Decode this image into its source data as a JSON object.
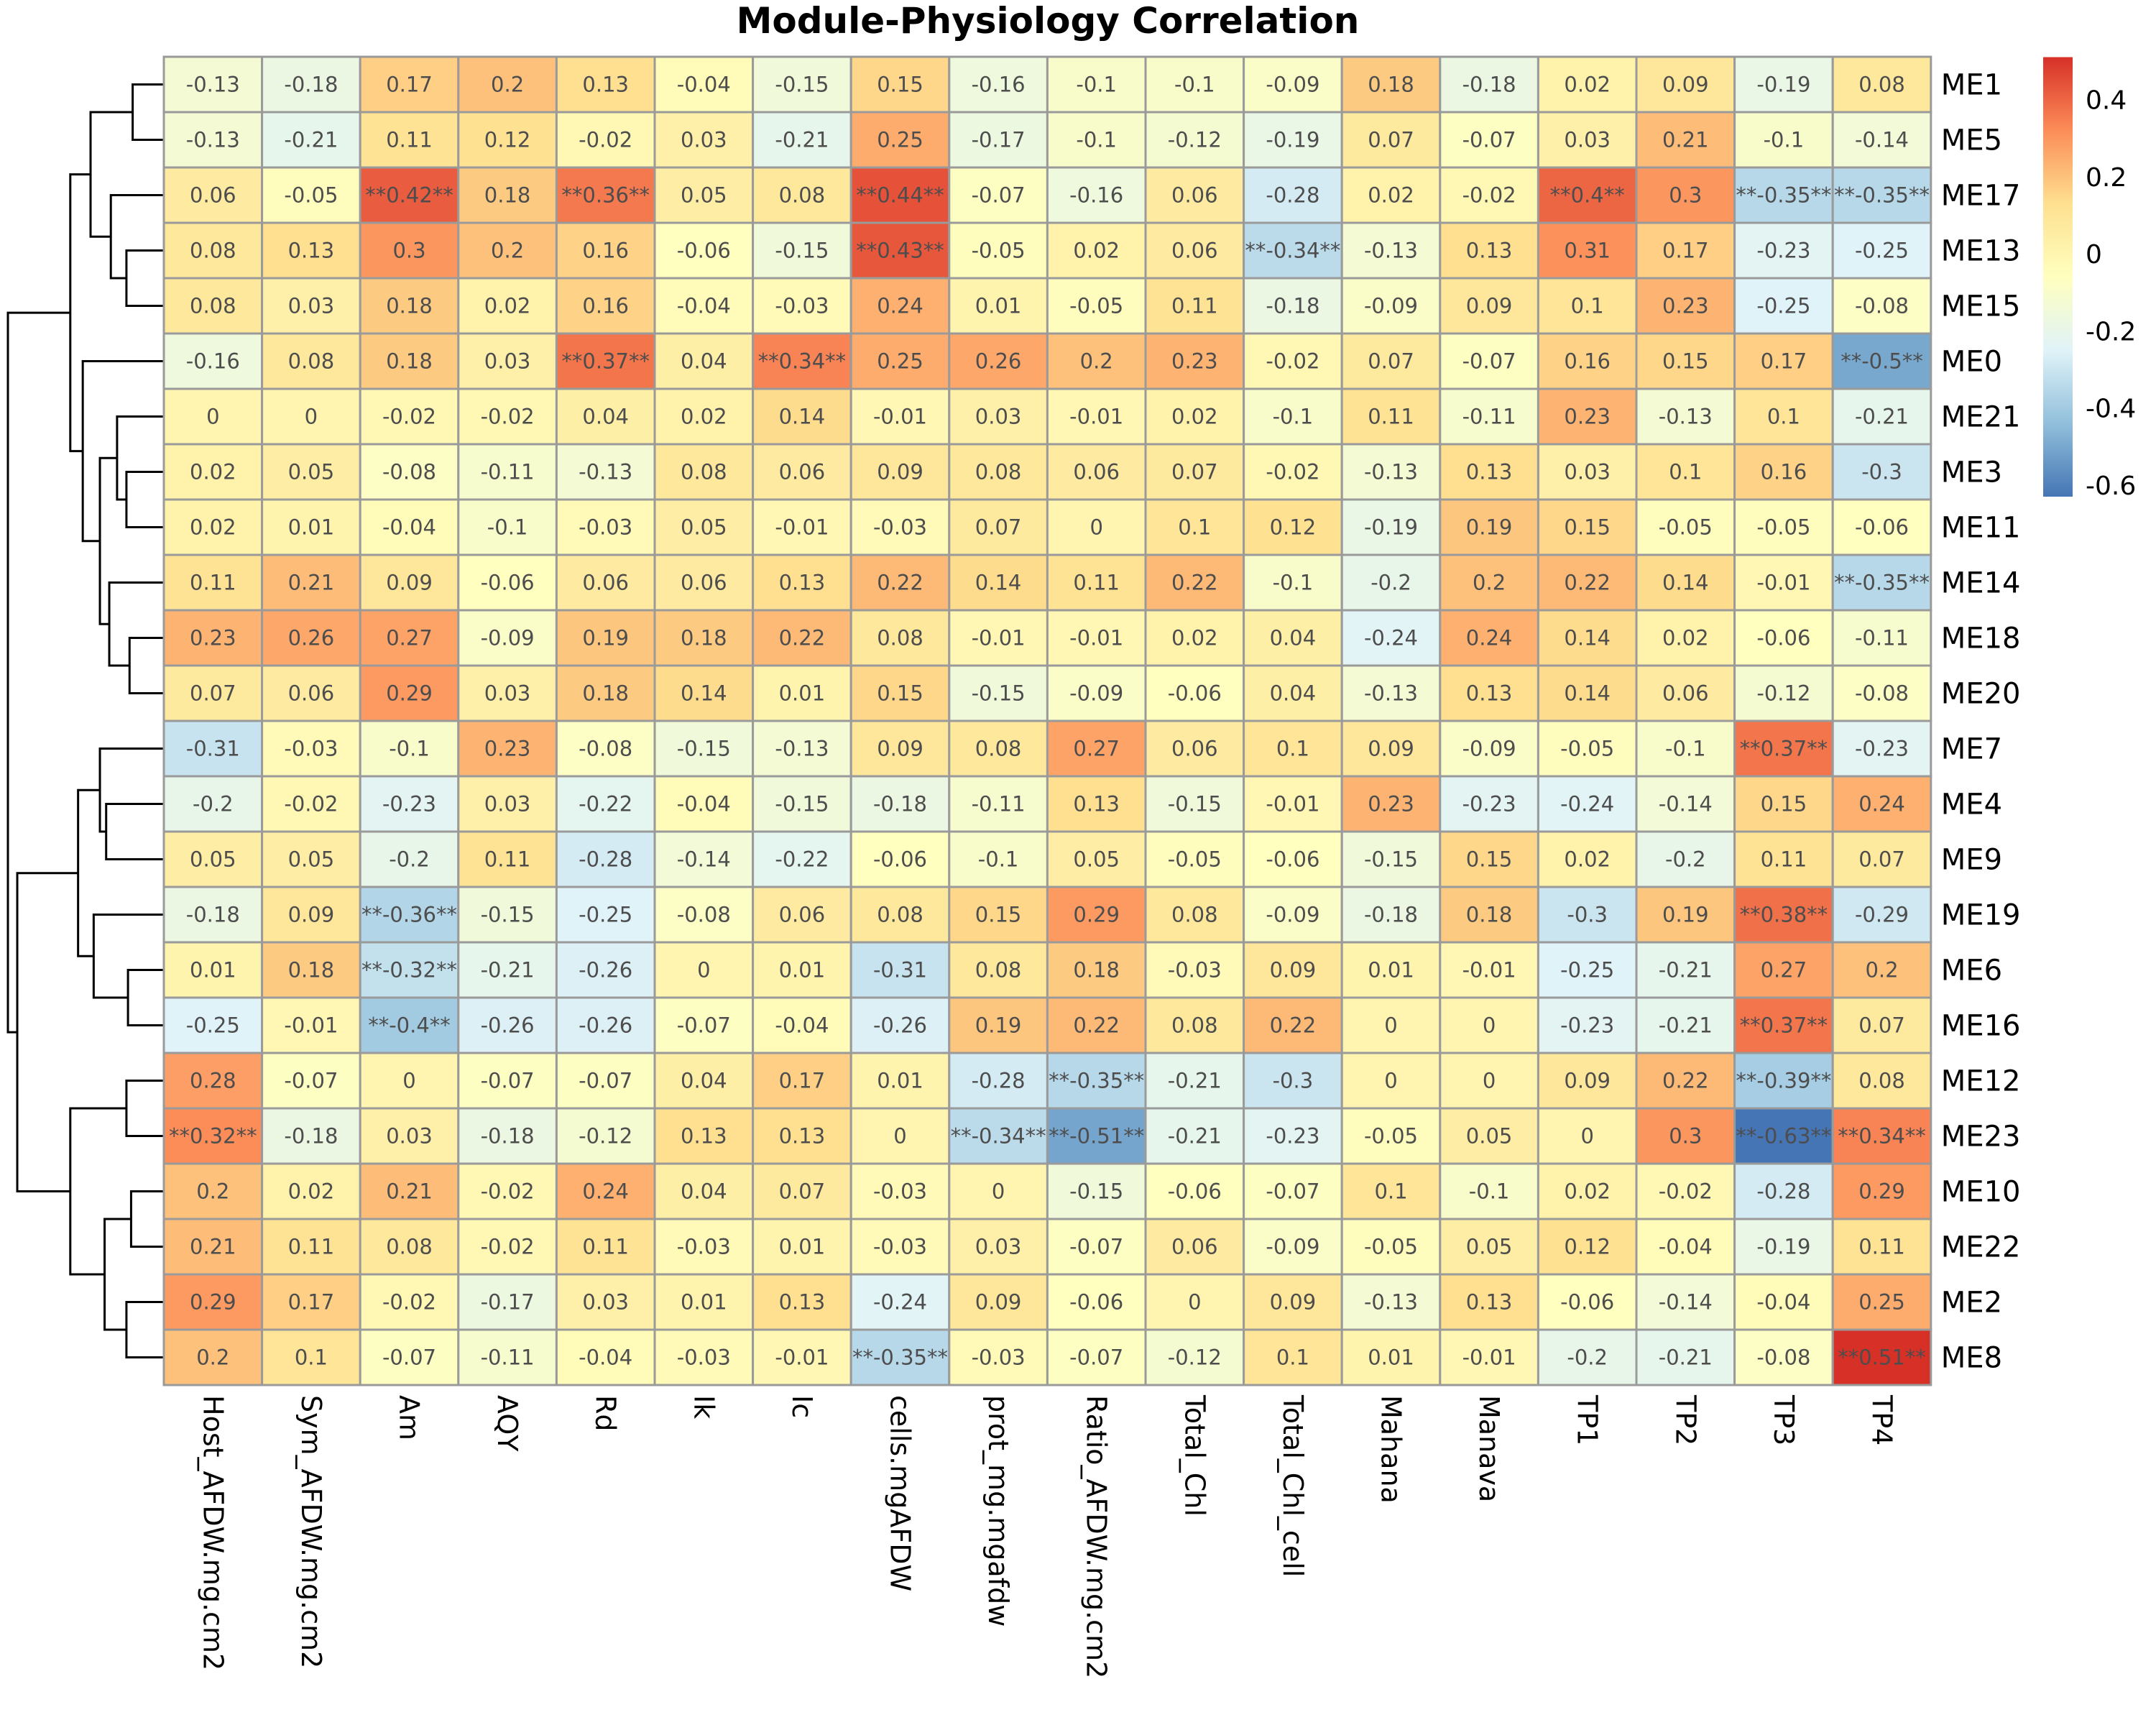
{
  "chart_data": {
    "type": "heatmap",
    "title": "Module-Physiology Correlation",
    "xlabel": "",
    "ylabel": "",
    "columns": [
      "Host_AFDW.mg.cm2",
      "Sym_AFDW.mg.cm2",
      "Am",
      "AQY",
      "Rd",
      "Ik",
      "Ic",
      "cells.mgAFDW",
      "prot_mg.mgafdw",
      "Ratio_AFDW.mg.cm2",
      "Total_Chl",
      "Total_Chl_cell",
      "Mahana",
      "Manava",
      "TP1",
      "TP2",
      "TP3",
      "TP4"
    ],
    "rows": [
      "ME1",
      "ME5",
      "ME17",
      "ME13",
      "ME15",
      "ME0",
      "ME21",
      "ME3",
      "ME11",
      "ME14",
      "ME18",
      "ME20",
      "ME7",
      "ME4",
      "ME9",
      "ME19",
      "ME6",
      "ME16",
      "ME12",
      "ME23",
      "ME10",
      "ME22",
      "ME2",
      "ME8"
    ],
    "values": [
      [
        -0.13,
        -0.18,
        0.17,
        0.2,
        0.13,
        -0.04,
        -0.15,
        0.15,
        -0.16,
        -0.1,
        -0.1,
        -0.09,
        0.18,
        -0.18,
        0.02,
        0.09,
        -0.19,
        0.08
      ],
      [
        -0.13,
        -0.21,
        0.11,
        0.12,
        -0.02,
        0.03,
        -0.21,
        0.25,
        -0.17,
        -0.1,
        -0.12,
        -0.19,
        0.07,
        -0.07,
        0.03,
        0.21,
        -0.1,
        -0.14
      ],
      [
        0.06,
        -0.05,
        0.42,
        0.18,
        0.36,
        0.05,
        0.08,
        0.44,
        -0.07,
        -0.16,
        0.06,
        -0.28,
        0.02,
        -0.02,
        0.4,
        0.3,
        -0.35,
        -0.35
      ],
      [
        0.08,
        0.13,
        0.3,
        0.2,
        0.16,
        -0.06,
        -0.15,
        0.43,
        -0.05,
        0.02,
        0.06,
        -0.34,
        -0.13,
        0.13,
        0.31,
        0.17,
        -0.23,
        -0.25
      ],
      [
        0.08,
        0.03,
        0.18,
        0.02,
        0.16,
        -0.04,
        -0.03,
        0.24,
        0.01,
        -0.05,
        0.11,
        -0.18,
        -0.09,
        0.09,
        0.1,
        0.23,
        -0.25,
        -0.08
      ],
      [
        -0.16,
        0.08,
        0.18,
        0.03,
        0.37,
        0.04,
        0.34,
        0.25,
        0.26,
        0.2,
        0.23,
        -0.02,
        0.07,
        -0.07,
        0.16,
        0.15,
        0.17,
        -0.5
      ],
      [
        0,
        0,
        -0.02,
        -0.02,
        0.04,
        0.02,
        0.14,
        -0.01,
        0.03,
        -0.01,
        0.02,
        -0.1,
        0.11,
        -0.11,
        0.23,
        -0.13,
        0.1,
        -0.21
      ],
      [
        0.02,
        0.05,
        -0.08,
        -0.11,
        -0.13,
        0.08,
        0.06,
        0.09,
        0.08,
        0.06,
        0.07,
        -0.02,
        -0.13,
        0.13,
        0.03,
        0.1,
        0.16,
        -0.3
      ],
      [
        0.02,
        0.01,
        -0.04,
        -0.1,
        -0.03,
        0.05,
        -0.01,
        -0.03,
        0.07,
        0,
        0.1,
        0.12,
        -0.19,
        0.19,
        0.15,
        -0.05,
        -0.05,
        -0.06
      ],
      [
        0.11,
        0.21,
        0.09,
        -0.06,
        0.06,
        0.06,
        0.13,
        0.22,
        0.14,
        0.11,
        0.22,
        -0.1,
        -0.2,
        0.2,
        0.22,
        0.14,
        -0.01,
        -0.35
      ],
      [
        0.23,
        0.26,
        0.27,
        -0.09,
        0.19,
        0.18,
        0.22,
        0.08,
        -0.01,
        -0.01,
        0.02,
        0.04,
        -0.24,
        0.24,
        0.14,
        0.02,
        -0.06,
        -0.11
      ],
      [
        0.07,
        0.06,
        0.29,
        0.03,
        0.18,
        0.14,
        0.01,
        0.15,
        -0.15,
        -0.09,
        -0.06,
        0.04,
        -0.13,
        0.13,
        0.14,
        0.06,
        -0.12,
        -0.08
      ],
      [
        -0.31,
        -0.03,
        -0.1,
        0.23,
        -0.08,
        -0.15,
        -0.13,
        0.09,
        0.08,
        0.27,
        0.06,
        0.1,
        0.09,
        -0.09,
        -0.05,
        -0.1,
        0.37,
        -0.23
      ],
      [
        -0.2,
        -0.02,
        -0.23,
        0.03,
        -0.22,
        -0.04,
        -0.15,
        -0.18,
        -0.11,
        0.13,
        -0.15,
        -0.01,
        0.23,
        -0.23,
        -0.24,
        -0.14,
        0.15,
        0.24
      ],
      [
        0.05,
        0.05,
        -0.2,
        0.11,
        -0.28,
        -0.14,
        -0.22,
        -0.06,
        -0.1,
        0.05,
        -0.05,
        -0.06,
        -0.15,
        0.15,
        0.02,
        -0.2,
        0.11,
        0.07
      ],
      [
        -0.18,
        0.09,
        -0.36,
        -0.15,
        -0.25,
        -0.08,
        0.06,
        0.08,
        0.15,
        0.29,
        0.08,
        -0.09,
        -0.18,
        0.18,
        -0.3,
        0.19,
        0.38,
        -0.29
      ],
      [
        0.01,
        0.18,
        -0.32,
        -0.21,
        -0.26,
        0,
        0.01,
        -0.31,
        0.08,
        0.18,
        -0.03,
        0.09,
        0.01,
        -0.01,
        -0.25,
        -0.21,
        0.27,
        0.2
      ],
      [
        -0.25,
        -0.01,
        -0.4,
        -0.26,
        -0.26,
        -0.07,
        -0.04,
        -0.26,
        0.19,
        0.22,
        0.08,
        0.22,
        0,
        0,
        -0.23,
        -0.21,
        0.37,
        0.07
      ],
      [
        0.28,
        -0.07,
        0,
        -0.07,
        -0.07,
        0.04,
        0.17,
        0.01,
        -0.28,
        -0.35,
        -0.21,
        -0.3,
        0,
        0,
        0.09,
        0.22,
        -0.39,
        0.08
      ],
      [
        0.32,
        -0.18,
        0.03,
        -0.18,
        -0.12,
        0.13,
        0.13,
        0,
        -0.34,
        -0.51,
        -0.21,
        -0.23,
        -0.05,
        0.05,
        0,
        0.3,
        -0.63,
        0.34
      ],
      [
        0.2,
        0.02,
        0.21,
        -0.02,
        0.24,
        0.04,
        0.07,
        -0.03,
        0,
        -0.15,
        -0.06,
        -0.07,
        0.1,
        -0.1,
        0.02,
        -0.02,
        -0.28,
        0.29
      ],
      [
        0.21,
        0.11,
        0.08,
        -0.02,
        0.11,
        -0.03,
        0.01,
        -0.03,
        0.03,
        -0.07,
        0.06,
        -0.09,
        -0.05,
        0.05,
        0.12,
        -0.04,
        -0.19,
        0.11
      ],
      [
        0.29,
        0.17,
        -0.02,
        -0.17,
        0.03,
        0.01,
        0.13,
        -0.24,
        0.09,
        -0.06,
        0,
        0.09,
        -0.13,
        0.13,
        -0.06,
        -0.14,
        -0.04,
        0.25
      ],
      [
        0.2,
        0.1,
        -0.07,
        -0.11,
        -0.04,
        -0.03,
        -0.01,
        -0.35,
        -0.03,
        -0.07,
        -0.12,
        0.1,
        0.01,
        -0.01,
        -0.2,
        -0.21,
        -0.08,
        0.51
      ]
    ],
    "cell_labels": [
      [
        "-0.13",
        "-0.18",
        "0.17",
        "0.2",
        "0.13",
        "-0.04",
        "-0.15",
        "0.15",
        "-0.16",
        "-0.1",
        "-0.1",
        "-0.09",
        "0.18",
        "-0.18",
        "0.02",
        "0.09",
        "-0.19",
        "0.08"
      ],
      [
        "-0.13",
        "-0.21",
        "0.11",
        "0.12",
        "-0.02",
        "0.03",
        "-0.21",
        "0.25",
        "-0.17",
        "-0.1",
        "-0.12",
        "-0.19",
        "0.07",
        "-0.07",
        "0.03",
        "0.21",
        "-0.1",
        "-0.14"
      ],
      [
        "0.06",
        "-0.05",
        "**0.42**",
        "0.18",
        "**0.36**",
        "0.05",
        "0.08",
        "**0.44**",
        "-0.07",
        "-0.16",
        "0.06",
        "-0.28",
        "0.02",
        "-0.02",
        "**0.4**",
        "0.3",
        "**-0.35**",
        "**-0.35**"
      ],
      [
        "0.08",
        "0.13",
        "0.3",
        "0.2",
        "0.16",
        "-0.06",
        "-0.15",
        "**0.43**",
        "-0.05",
        "0.02",
        "0.06",
        "**-0.34**",
        "-0.13",
        "0.13",
        "0.31",
        "0.17",
        "-0.23",
        "-0.25"
      ],
      [
        "0.08",
        "0.03",
        "0.18",
        "0.02",
        "0.16",
        "-0.04",
        "-0.03",
        "0.24",
        "0.01",
        "-0.05",
        "0.11",
        "-0.18",
        "-0.09",
        "0.09",
        "0.1",
        "0.23",
        "-0.25",
        "-0.08"
      ],
      [
        "-0.16",
        "0.08",
        "0.18",
        "0.03",
        "**0.37**",
        "0.04",
        "**0.34**",
        "0.25",
        "0.26",
        "0.2",
        "0.23",
        "-0.02",
        "0.07",
        "-0.07",
        "0.16",
        "0.15",
        "0.17",
        "**-0.5**"
      ],
      [
        "0",
        "0",
        "-0.02",
        "-0.02",
        "0.04",
        "0.02",
        "0.14",
        "-0.01",
        "0.03",
        "-0.01",
        "0.02",
        "-0.1",
        "0.11",
        "-0.11",
        "0.23",
        "-0.13",
        "0.1",
        "-0.21"
      ],
      [
        "0.02",
        "0.05",
        "-0.08",
        "-0.11",
        "-0.13",
        "0.08",
        "0.06",
        "0.09",
        "0.08",
        "0.06",
        "0.07",
        "-0.02",
        "-0.13",
        "0.13",
        "0.03",
        "0.1",
        "0.16",
        "-0.3"
      ],
      [
        "0.02",
        "0.01",
        "-0.04",
        "-0.1",
        "-0.03",
        "0.05",
        "-0.01",
        "-0.03",
        "0.07",
        "0",
        "0.1",
        "0.12",
        "-0.19",
        "0.19",
        "0.15",
        "-0.05",
        "-0.05",
        "-0.06"
      ],
      [
        "0.11",
        "0.21",
        "0.09",
        "-0.06",
        "0.06",
        "0.06",
        "0.13",
        "0.22",
        "0.14",
        "0.11",
        "0.22",
        "-0.1",
        "-0.2",
        "0.2",
        "0.22",
        "0.14",
        "-0.01",
        "**-0.35**"
      ],
      [
        "0.23",
        "0.26",
        "0.27",
        "-0.09",
        "0.19",
        "0.18",
        "0.22",
        "0.08",
        "-0.01",
        "-0.01",
        "0.02",
        "0.04",
        "-0.24",
        "0.24",
        "0.14",
        "0.02",
        "-0.06",
        "-0.11"
      ],
      [
        "0.07",
        "0.06",
        "0.29",
        "0.03",
        "0.18",
        "0.14",
        "0.01",
        "0.15",
        "-0.15",
        "-0.09",
        "-0.06",
        "0.04",
        "-0.13",
        "0.13",
        "0.14",
        "0.06",
        "-0.12",
        "-0.08"
      ],
      [
        "-0.31",
        "-0.03",
        "-0.1",
        "0.23",
        "-0.08",
        "-0.15",
        "-0.13",
        "0.09",
        "0.08",
        "0.27",
        "0.06",
        "0.1",
        "0.09",
        "-0.09",
        "-0.05",
        "-0.1",
        "**0.37**",
        "-0.23"
      ],
      [
        "-0.2",
        "-0.02",
        "-0.23",
        "0.03",
        "-0.22",
        "-0.04",
        "-0.15",
        "-0.18",
        "-0.11",
        "0.13",
        "-0.15",
        "-0.01",
        "0.23",
        "-0.23",
        "-0.24",
        "-0.14",
        "0.15",
        "0.24"
      ],
      [
        "0.05",
        "0.05",
        "-0.2",
        "0.11",
        "-0.28",
        "-0.14",
        "-0.22",
        "-0.06",
        "-0.1",
        "0.05",
        "-0.05",
        "-0.06",
        "-0.15",
        "0.15",
        "0.02",
        "-0.2",
        "0.11",
        "0.07"
      ],
      [
        "-0.18",
        "0.09",
        "**-0.36**",
        "-0.15",
        "-0.25",
        "-0.08",
        "0.06",
        "0.08",
        "0.15",
        "0.29",
        "0.08",
        "-0.09",
        "-0.18",
        "0.18",
        "-0.3",
        "0.19",
        "**0.38**",
        "-0.29"
      ],
      [
        "0.01",
        "0.18",
        "**-0.32**",
        "-0.21",
        "-0.26",
        "0",
        "0.01",
        "-0.31",
        "0.08",
        "0.18",
        "-0.03",
        "0.09",
        "0.01",
        "-0.01",
        "-0.25",
        "-0.21",
        "0.27",
        "0.2"
      ],
      [
        "-0.25",
        "-0.01",
        "**-0.4**",
        "-0.26",
        "-0.26",
        "-0.07",
        "-0.04",
        "-0.26",
        "0.19",
        "0.22",
        "0.08",
        "0.22",
        "0",
        "0",
        "-0.23",
        "-0.21",
        "**0.37**",
        "0.07"
      ],
      [
        "0.28",
        "-0.07",
        "0",
        "-0.07",
        "-0.07",
        "0.04",
        "0.17",
        "0.01",
        "-0.28",
        "**-0.35**",
        "-0.21",
        "-0.3",
        "0",
        "0",
        "0.09",
        "0.22",
        "**-0.39**",
        "0.08"
      ],
      [
        "**0.32**",
        "-0.18",
        "0.03",
        "-0.18",
        "-0.12",
        "0.13",
        "0.13",
        "0",
        "**-0.34**",
        "**-0.51**",
        "-0.21",
        "-0.23",
        "-0.05",
        "0.05",
        "0",
        "0.3",
        "**-0.63**",
        "**0.34**"
      ],
      [
        "0.2",
        "0.02",
        "0.21",
        "-0.02",
        "0.24",
        "0.04",
        "0.07",
        "-0.03",
        "0",
        "-0.15",
        "-0.06",
        "-0.07",
        "0.1",
        "-0.1",
        "0.02",
        "-0.02",
        "-0.28",
        "0.29"
      ],
      [
        "0.21",
        "0.11",
        "0.08",
        "-0.02",
        "0.11",
        "-0.03",
        "0.01",
        "-0.03",
        "0.03",
        "-0.07",
        "0.06",
        "-0.09",
        "-0.05",
        "0.05",
        "0.12",
        "-0.04",
        "-0.19",
        "0.11"
      ],
      [
        "0.29",
        "0.17",
        "-0.02",
        "-0.17",
        "0.03",
        "0.01",
        "0.13",
        "-0.24",
        "0.09",
        "-0.06",
        "0",
        "0.09",
        "-0.13",
        "0.13",
        "-0.06",
        "-0.14",
        "-0.04",
        "0.25"
      ],
      [
        "0.2",
        "0.1",
        "-0.07",
        "-0.11",
        "-0.04",
        "-0.03",
        "-0.01",
        "**-0.35**",
        "-0.03",
        "-0.07",
        "-0.12",
        "0.1",
        "0.01",
        "-0.01",
        "-0.2",
        "-0.21",
        "-0.08",
        "**0.51**"
      ]
    ],
    "color_scale": {
      "range": [
        -0.63,
        0.51
      ],
      "colors": [
        "#4575B4",
        "#91BFDB",
        "#E0F3F8",
        "#FFFFBF",
        "#FEE090",
        "#FC8D59",
        "#D73027"
      ]
    },
    "legend": {
      "position": "right",
      "ticks": [
        0.4,
        0.2,
        0,
        -0.2,
        -0.4,
        -0.6
      ],
      "tick_labels": [
        "0.4",
        "0.2",
        "0",
        "-0.2",
        "-0.4",
        "-0.6"
      ]
    },
    "row_dendrogram": {
      "note_units": "relative merge height (root = 1)",
      "merges": [
        {
          "id": "n1",
          "left": "ME1",
          "right": "ME5",
          "height": 0.2
        },
        {
          "id": "n2",
          "left": "ME13",
          "right": "ME15",
          "height": 0.24
        },
        {
          "id": "n3",
          "left": "ME17",
          "right": "n2",
          "height": 0.34
        },
        {
          "id": "n4",
          "left": "n1",
          "right": "n3",
          "height": 0.47
        },
        {
          "id": "n5",
          "left": "ME3",
          "right": "ME11",
          "height": 0.24
        },
        {
          "id": "n6",
          "left": "ME21",
          "right": "n5",
          "height": 0.3
        },
        {
          "id": "n7",
          "left": "ME18",
          "right": "ME20",
          "height": 0.22
        },
        {
          "id": "n8",
          "left": "ME14",
          "right": "n7",
          "height": 0.35
        },
        {
          "id": "n9",
          "left": "n6",
          "right": "n8",
          "height": 0.41
        },
        {
          "id": "n10",
          "left": "ME0",
          "right": "n9",
          "height": 0.52
        },
        {
          "id": "n11",
          "left": "n4",
          "right": "n10",
          "height": 0.6
        },
        {
          "id": "n12",
          "left": "ME4",
          "right": "ME9",
          "height": 0.37
        },
        {
          "id": "n13",
          "left": "ME7",
          "right": "n12",
          "height": 0.41
        },
        {
          "id": "n14",
          "left": "ME6",
          "right": "ME16",
          "height": 0.23
        },
        {
          "id": "n15",
          "left": "ME19",
          "right": "n14",
          "height": 0.45
        },
        {
          "id": "n16",
          "left": "n13",
          "right": "n15",
          "height": 0.55
        },
        {
          "id": "n17",
          "left": "ME12",
          "right": "ME23",
          "height": 0.24
        },
        {
          "id": "n18",
          "left": "ME10",
          "right": "ME22",
          "height": 0.21
        },
        {
          "id": "n19",
          "left": "ME2",
          "right": "ME8",
          "height": 0.24
        },
        {
          "id": "n20",
          "left": "n18",
          "right": "n19",
          "height": 0.38
        },
        {
          "id": "n21",
          "left": "n17",
          "right": "n20",
          "height": 0.6
        },
        {
          "id": "n22",
          "left": "n16",
          "right": "n21",
          "height": 0.94
        },
        {
          "id": "n23",
          "left": "n11",
          "right": "n22",
          "height": 1.0
        }
      ]
    }
  }
}
